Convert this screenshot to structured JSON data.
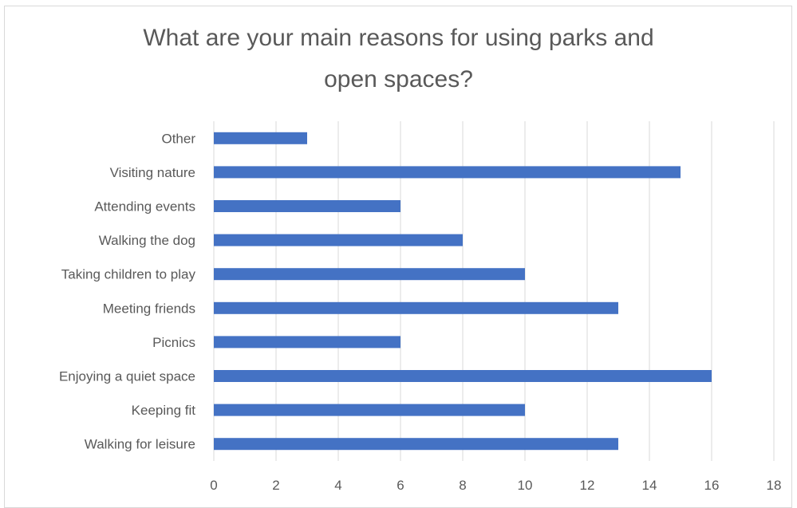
{
  "chart_data": {
    "type": "bar",
    "orientation": "horizontal",
    "title": "What are your main reasons for using parks and\nopen spaces?",
    "xlabel": "",
    "ylabel": "",
    "categories": [
      "Walking for leisure",
      "Keeping fit",
      "Enjoying a quiet space",
      "Picnics",
      "Meeting friends",
      "Taking children to play",
      "Walking the dog",
      "Attending events",
      "Visiting nature",
      "Other"
    ],
    "values": [
      13,
      10,
      16,
      6,
      13,
      10,
      8,
      6,
      15,
      3
    ],
    "xlim": [
      0,
      18
    ],
    "xticks": [
      "0",
      "2",
      "4",
      "6",
      "8",
      "10",
      "12",
      "14",
      "16",
      "18"
    ],
    "grid": "vertical",
    "legend": "none",
    "bar_color": "#4472c4",
    "grid_color": "#d9d9d9",
    "text_color": "#595959"
  }
}
